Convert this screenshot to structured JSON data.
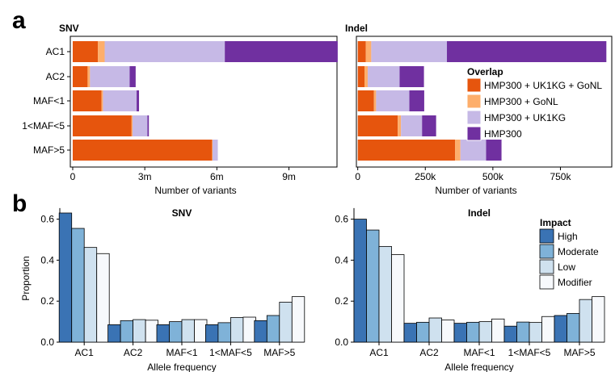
{
  "panel_labels": {
    "a": "a",
    "b": "b"
  },
  "colors": {
    "overlap": [
      "#e6550d",
      "#fdae6b",
      "#c6b9e6",
      "#7030a0"
    ],
    "impact": [
      "#3a73b4",
      "#7fb2d8",
      "#cfe1ef",
      "#f7f9fc"
    ]
  },
  "chart_data": [
    {
      "type": "bar",
      "orientation": "horizontal",
      "stacked": true,
      "title": "SNV",
      "xlabel": "Number of variants",
      "categories": [
        "AC1",
        "AC2",
        "MAF<1",
        "1<MAF<5",
        "MAF>5"
      ],
      "xticks": [
        0,
        3000000,
        6000000,
        9000000
      ],
      "xtick_labels": [
        "0",
        "3m",
        "6m",
        "9m"
      ],
      "xlim": [
        -100000,
        11000000
      ],
      "series": [
        {
          "name": "HMP300 + UK1KG + GoNL",
          "values": [
            1050000,
            620000,
            1200000,
            2450000,
            5800000
          ]
        },
        {
          "name": "HMP300 + GoNL",
          "values": [
            280000,
            100000,
            60000,
            40000,
            20000
          ]
        },
        {
          "name": "HMP300 + UK1KG",
          "values": [
            5000000,
            1650000,
            1400000,
            620000,
            220000
          ]
        },
        {
          "name": "HMP300",
          "values": [
            4700000,
            250000,
            100000,
            60000,
            0
          ]
        }
      ]
    },
    {
      "type": "bar",
      "orientation": "horizontal",
      "stacked": true,
      "title": "Indel",
      "xlabel": "Number of variants",
      "categories": [
        "AC1",
        "AC2",
        "MAF<1",
        "1<MAF<5",
        "MAF>5"
      ],
      "xticks": [
        0,
        250000,
        500000,
        750000
      ],
      "xtick_labels": [
        "0",
        "250k",
        "500k",
        "750k"
      ],
      "xlim": [
        -5000,
        940000
      ],
      "legend": {
        "title": "Overlap",
        "position": "right",
        "labels": [
          "HMP300 + UK1KG + GoNL",
          "HMP300 + GoNL",
          "HMP300 + UK1KG",
          "HMP300"
        ]
      },
      "series": [
        {
          "name": "HMP300 + UK1KG + GoNL",
          "values": [
            30000,
            25000,
            60000,
            148000,
            360000
          ]
        },
        {
          "name": "HMP300 + GoNL",
          "values": [
            20000,
            12000,
            8000,
            12000,
            20000
          ]
        },
        {
          "name": "HMP300 + UK1KG",
          "values": [
            280000,
            118000,
            123000,
            78000,
            95000
          ]
        },
        {
          "name": "HMP300",
          "values": [
            590000,
            90000,
            55000,
            52000,
            57000
          ]
        }
      ]
    },
    {
      "type": "bar",
      "stacked": false,
      "title": "SNV",
      "xlabel": "Allele frequency",
      "ylabel": "Proportion",
      "categories": [
        "AC1",
        "AC2",
        "MAF<1",
        "1<MAF<5",
        "MAF>5"
      ],
      "yticks": [
        0.0,
        0.2,
        0.4,
        0.6
      ],
      "ytick_labels": [
        "0.0",
        "0.2",
        "0.4",
        "0.6"
      ],
      "ylim": [
        0,
        0.67
      ],
      "series": [
        {
          "name": "High",
          "values": [
            0.63,
            0.085,
            0.085,
            0.085,
            0.105
          ]
        },
        {
          "name": "Moderate",
          "values": [
            0.555,
            0.105,
            0.1,
            0.095,
            0.13
          ]
        },
        {
          "name": "Low",
          "values": [
            0.462,
            0.11,
            0.11,
            0.12,
            0.195
          ]
        },
        {
          "name": "Modifier",
          "values": [
            0.432,
            0.107,
            0.11,
            0.122,
            0.222
          ]
        }
      ]
    },
    {
      "type": "bar",
      "stacked": false,
      "title": "Indel",
      "xlabel": "Allele frequency",
      "ylabel": "",
      "categories": [
        "AC1",
        "AC2",
        "MAF<1",
        "1<MAF<5",
        "MAF>5"
      ],
      "yticks": [
        0.0,
        0.2,
        0.4,
        0.6
      ],
      "ytick_labels": [
        "0.0",
        "0.2",
        "0.4",
        "0.6"
      ],
      "ylim": [
        0,
        0.67
      ],
      "legend": {
        "title": "Impact",
        "position": "top-right",
        "labels": [
          "High",
          "Moderate",
          "Low",
          "Modifier"
        ]
      },
      "series": [
        {
          "name": "High",
          "values": [
            0.6,
            0.092,
            0.092,
            0.078,
            0.13
          ]
        },
        {
          "name": "Moderate",
          "values": [
            0.547,
            0.097,
            0.097,
            0.098,
            0.14
          ]
        },
        {
          "name": "Low",
          "values": [
            0.467,
            0.118,
            0.1,
            0.096,
            0.208
          ]
        },
        {
          "name": "Modifier",
          "values": [
            0.427,
            0.108,
            0.113,
            0.125,
            0.222
          ]
        }
      ]
    }
  ]
}
